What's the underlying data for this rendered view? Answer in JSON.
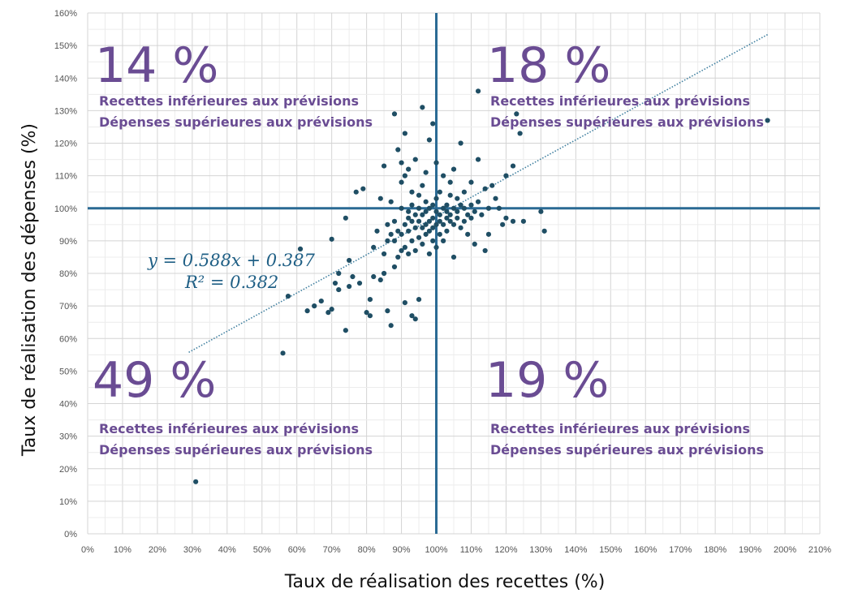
{
  "chart_data": {
    "type": "scatter",
    "xlabel": "Taux de réalisation des recettes (%)",
    "ylabel": "Taux de réalisation des dépenses (%)",
    "xlim": [
      0,
      210
    ],
    "ylim": [
      0,
      160
    ],
    "x_ticks": [
      "0%",
      "10%",
      "20%",
      "30%",
      "40%",
      "50%",
      "60%",
      "70%",
      "80%",
      "90%",
      "100%",
      "110%",
      "120%",
      "130%",
      "140%",
      "150%",
      "160%",
      "170%",
      "180%",
      "190%",
      "200%",
      "210%"
    ],
    "y_ticks": [
      "0%",
      "10%",
      "20%",
      "30%",
      "40%",
      "50%",
      "60%",
      "70%",
      "80%",
      "90%",
      "100%",
      "110%",
      "120%",
      "130%",
      "140%",
      "150%",
      "160%"
    ],
    "grid": true,
    "reference_lines": {
      "x": 100,
      "y": 100
    },
    "trendline": {
      "slope": 0.588,
      "intercept": 0.387,
      "x_range": [
        29,
        195
      ]
    },
    "equation_lines": [
      "y = 0.588x + 0.387",
      "R² = 0.382"
    ],
    "quadrants": [
      {
        "percent": "14 %",
        "line1": "Recettes inférieures aux prévisions",
        "line2": "Dépenses supérieures aux prévisions"
      },
      {
        "percent": "18 %",
        "line1": "Recettes inférieures aux prévisions",
        "line2": "Dépenses supérieures aux prévisions"
      },
      {
        "percent": "49 %",
        "line1": "Recettes inférieures aux prévisions",
        "line2": "Dépenses supérieures aux prévisions"
      },
      {
        "percent": "19 %",
        "line1": "Recettes inférieures aux prévisions",
        "line2": "Dépenses supérieures aux prévisions"
      }
    ],
    "series": [
      {
        "points": [
          [
            31,
            16
          ],
          [
            56,
            55.5
          ],
          [
            57.5,
            73
          ],
          [
            61,
            87.5
          ],
          [
            63,
            68.5
          ],
          [
            65,
            70
          ],
          [
            67,
            71.5
          ],
          [
            69,
            68
          ],
          [
            70,
            90.5
          ],
          [
            70,
            69
          ],
          [
            71,
            77
          ],
          [
            72,
            80
          ],
          [
            72,
            75
          ],
          [
            74,
            62.5
          ],
          [
            74,
            97
          ],
          [
            75,
            84
          ],
          [
            75,
            76
          ],
          [
            76,
            79
          ],
          [
            77,
            105
          ],
          [
            78,
            77
          ],
          [
            79,
            106
          ],
          [
            80,
            68
          ],
          [
            81,
            72
          ],
          [
            81,
            67
          ],
          [
            82,
            79
          ],
          [
            82,
            88
          ],
          [
            83,
            93
          ],
          [
            84,
            103
          ],
          [
            84,
            78
          ],
          [
            85,
            80
          ],
          [
            85,
            86
          ],
          [
            85,
            113
          ],
          [
            86,
            68.5
          ],
          [
            86,
            90
          ],
          [
            86,
            95
          ],
          [
            87,
            64
          ],
          [
            87,
            92
          ],
          [
            87,
            102
          ],
          [
            88,
            129
          ],
          [
            88,
            82
          ],
          [
            88,
            90
          ],
          [
            88,
            96
          ],
          [
            89,
            118
          ],
          [
            89,
            85
          ],
          [
            89,
            93
          ],
          [
            90,
            114
          ],
          [
            90,
            100
          ],
          [
            90,
            92
          ],
          [
            90,
            87
          ],
          [
            90,
            108
          ],
          [
            91,
            123
          ],
          [
            91,
            110
          ],
          [
            91,
            95
          ],
          [
            91,
            88
          ],
          [
            91,
            71
          ],
          [
            92,
            99
          ],
          [
            92,
            93
          ],
          [
            92,
            112
          ],
          [
            92,
            86
          ],
          [
            92,
            97
          ],
          [
            93,
            101
          ],
          [
            93,
            96
          ],
          [
            93,
            90
          ],
          [
            93,
            67
          ],
          [
            93,
            105
          ],
          [
            94,
            98
          ],
          [
            94,
            94
          ],
          [
            94,
            87
          ],
          [
            94,
            115
          ],
          [
            94,
            66
          ],
          [
            95,
            100
          ],
          [
            95,
            96
          ],
          [
            95,
            91
          ],
          [
            95,
            72
          ],
          [
            95,
            104
          ],
          [
            96,
            131
          ],
          [
            96,
            98
          ],
          [
            96,
            94
          ],
          [
            96,
            89
          ],
          [
            96,
            107
          ],
          [
            97,
            99
          ],
          [
            97,
            95
          ],
          [
            97,
            92
          ],
          [
            97,
            102
          ],
          [
            97,
            111
          ],
          [
            98,
            100
          ],
          [
            98,
            96
          ],
          [
            98,
            93
          ],
          [
            98,
            86
          ],
          [
            98,
            121
          ],
          [
            99,
            101
          ],
          [
            99,
            97
          ],
          [
            99,
            94
          ],
          [
            99,
            90
          ],
          [
            99,
            126
          ],
          [
            100,
            99
          ],
          [
            100,
            95
          ],
          [
            100,
            103
          ],
          [
            100,
            88
          ],
          [
            100,
            114
          ],
          [
            101,
            98
          ],
          [
            101,
            96
          ],
          [
            101,
            92
          ],
          [
            101,
            105
          ],
          [
            102,
            100
          ],
          [
            102,
            95
          ],
          [
            102,
            110
          ],
          [
            102,
            90
          ],
          [
            103,
            99
          ],
          [
            103,
            97
          ],
          [
            103,
            101
          ],
          [
            103,
            93
          ],
          [
            104,
            98
          ],
          [
            104,
            104
          ],
          [
            104,
            108
          ],
          [
            104,
            96
          ],
          [
            105,
            100
          ],
          [
            105,
            95
          ],
          [
            105,
            85
          ],
          [
            105,
            112
          ],
          [
            106,
            99
          ],
          [
            106,
            103
          ],
          [
            106,
            97
          ],
          [
            107,
            101
          ],
          [
            107,
            120
          ],
          [
            107,
            94
          ],
          [
            108,
            100
          ],
          [
            108,
            96
          ],
          [
            108,
            105
          ],
          [
            109,
            98
          ],
          [
            109,
            92
          ],
          [
            110,
            101
          ],
          [
            110,
            97
          ],
          [
            110,
            108
          ],
          [
            111,
            99
          ],
          [
            111,
            89
          ],
          [
            112,
            136
          ],
          [
            112,
            102
          ],
          [
            112,
            115
          ],
          [
            113,
            98
          ],
          [
            114,
            87
          ],
          [
            114,
            106
          ],
          [
            115,
            100
          ],
          [
            115,
            92
          ],
          [
            116,
            107
          ],
          [
            117,
            103
          ],
          [
            118,
            100
          ],
          [
            119,
            95
          ],
          [
            120,
            110
          ],
          [
            120,
            97
          ],
          [
            122,
            113
          ],
          [
            122,
            96
          ],
          [
            123,
            129
          ],
          [
            124,
            123
          ],
          [
            125,
            96
          ],
          [
            130,
            99
          ],
          [
            131,
            93
          ],
          [
            195,
            127
          ]
        ]
      }
    ],
    "colors": {
      "points": "#1f4e64",
      "reference_lines": "#2a6a94",
      "trendline": "#3f7f9f",
      "annotations": "#6a4c93",
      "equation": "#1f5f85",
      "grid": "#dddddd"
    }
  }
}
